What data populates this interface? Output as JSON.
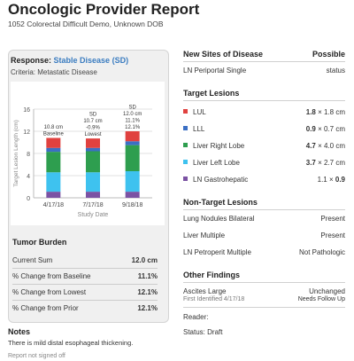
{
  "header": {
    "title": "Oncologic Provider Report",
    "subtitle": "1052 Colorectal Difficult Demo, Unknown DOB"
  },
  "response": {
    "label": "Response:",
    "value": "Stable Disease (SD)",
    "criteria": "Criteria: Metastatic Disease"
  },
  "chart_data": {
    "type": "bar",
    "stacked": true,
    "ylabel": "Target Lesion Length (cm)",
    "xlabel": "Study Date",
    "ylim": [
      0,
      16
    ],
    "yticks": [
      "0",
      "4",
      "8",
      "12",
      "16"
    ],
    "categories": [
      "4/17/18",
      "7/17/18",
      "9/18/18"
    ],
    "bar_labels": [
      [
        "10.8 cm",
        "Baseline"
      ],
      [
        "SD",
        "10.7 cm",
        "-0.9%",
        "Lowest"
      ],
      [
        "SD",
        "12.0 cm",
        "11.1%",
        "12.1%"
      ]
    ],
    "series": [
      {
        "name": "LN Gastrohepatic",
        "color": "#7b52a3",
        "values": [
          1.1,
          1.1,
          1.1
        ]
      },
      {
        "name": "Liver Left Lobe",
        "color": "#3ec2ef",
        "values": [
          3.5,
          3.5,
          3.7
        ]
      },
      {
        "name": "Liver Right Lobe",
        "color": "#2e9e4f",
        "values": [
          3.7,
          3.8,
          4.7
        ]
      },
      {
        "name": "LLL",
        "color": "#3b6fc4",
        "values": [
          0.7,
          0.6,
          0.7
        ]
      },
      {
        "name": "LUL",
        "color": "#e0413f",
        "values": [
          1.8,
          1.7,
          1.8
        ]
      }
    ],
    "grid": true
  },
  "tumor_burden": {
    "title": "Tumor Burden",
    "rows": [
      {
        "label": "Current Sum",
        "value": "12.0 cm"
      },
      {
        "label": "% Change from Baseline",
        "value": "11.1%"
      },
      {
        "label": "% Change from Lowest",
        "value": "12.1%"
      },
      {
        "label": "% Change from Prior",
        "value": "12.1%"
      }
    ]
  },
  "notes": {
    "title": "Notes",
    "text": "There is mild distal esophageal thickening."
  },
  "footer": "Report not signed off",
  "new_sites": {
    "title": "New Sites of Disease",
    "header_right": "Possible",
    "item": "LN Periportal Single",
    "item_status": "status"
  },
  "target_lesions": {
    "title": "Target Lesions",
    "items": [
      {
        "name": "LUL",
        "color": "#e0413f",
        "d1": "1.8",
        "d2": " × 1.8 cm",
        "bold": "first"
      },
      {
        "name": "LLL",
        "color": "#3b6fc4",
        "d1": "0.9",
        "d2": " × 0.7 cm",
        "bold": "first"
      },
      {
        "name": "Liver Right Lobe",
        "color": "#2e9e4f",
        "d1": "4.7",
        "d2": " × 4.0 cm",
        "bold": "first"
      },
      {
        "name": "Liver Left Lobe",
        "color": "#3ec2ef",
        "d1": "3.7",
        "d2": " × 2.7 cm",
        "bold": "first"
      },
      {
        "name": "LN Gastrohepatic",
        "color": "#7b52a3",
        "d1": "1.1 × ",
        "d2": "0.9",
        "bold": "second"
      }
    ]
  },
  "non_target": {
    "title": "Non-Target Lesions",
    "items": [
      {
        "name": "Lung Nodules Bilateral",
        "status": "Present"
      },
      {
        "name": "Liver Multiple",
        "status": "Present"
      },
      {
        "name": "LN Petroperit Multiple",
        "status": "Not Pathologic"
      }
    ]
  },
  "other_findings": {
    "title": "Other Findings",
    "name": "Ascites Large",
    "sub": "First Identified 4/17/18",
    "status": "Unchanged",
    "status_sub": "Needs Follow Up"
  },
  "reader": "Reader:",
  "status": "Status: Draft"
}
